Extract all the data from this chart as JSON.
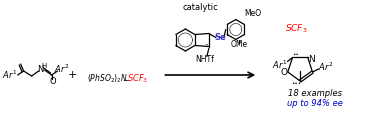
{
  "bg_color": "#ffffff",
  "red_color": "#ff0000",
  "blue_color": "#0000cc",
  "black_color": "#000000",
  "gray_color": "#666666",
  "se_color": "#3333cc",
  "figsize": [
    3.78,
    1.18
  ],
  "dpi": 100,
  "catalytic_text": "catalytic",
  "meo_text": "MeO",
  "ome_text": "OMe",
  "se_text": "Se",
  "nhttf_text": "NHTf",
  "examples_text": "18 examples",
  "ee_text": "up to 94% ee",
  "plus_text": "+",
  "reagent_black": "(PhSO₂)₂N–",
  "scf3_text": "SCF₃",
  "o_text": "O",
  "n_text": "N"
}
